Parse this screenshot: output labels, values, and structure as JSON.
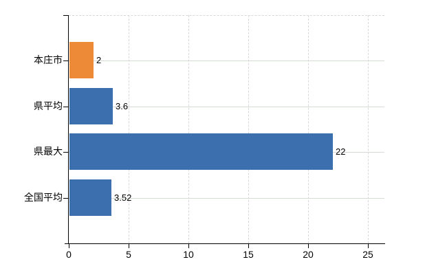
{
  "canvas": {
    "background": "#ffffff"
  },
  "chart_data": {
    "type": "bar",
    "orientation": "horizontal",
    "title": "",
    "categories": [
      "本庄市",
      "県平均",
      "県最大",
      "全国平均"
    ],
    "values": [
      2,
      3.6,
      22,
      3.52
    ],
    "value_labels": [
      "2",
      "3.6",
      "22",
      "3.52"
    ],
    "series": [
      {
        "name": "highlighted-row",
        "categories": [
          "本庄市"
        ],
        "values": [
          2
        ],
        "color": "#ec8a38"
      },
      {
        "name": "reference-rows",
        "categories": [
          "県平均",
          "県最大",
          "全国平均"
        ],
        "values": [
          3.6,
          22,
          3.52
        ],
        "color": "#3c6fae"
      }
    ],
    "bar_colors": [
      "#ec8a38",
      "#3c6fae",
      "#3c6fae",
      "#3c6fae"
    ],
    "xlim": [
      0,
      25
    ],
    "x_ticks": [
      0,
      5,
      10,
      15,
      20,
      25
    ],
    "x_tick_labels": [
      "0",
      "5",
      "10",
      "15",
      "20",
      "25"
    ],
    "xlabel": "",
    "ylabel": "",
    "legend": null,
    "grid": {
      "vertical": "dashed",
      "horizontal": "solid",
      "top_border": "dashed",
      "vertical_color": "#d7d7dd",
      "horizontal_color": "#d3dbd3"
    },
    "axis_color": "#000000",
    "text_color": "#000000"
  }
}
